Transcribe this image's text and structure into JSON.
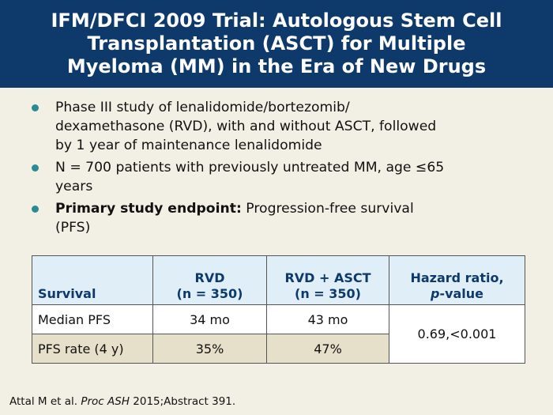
{
  "header": {
    "title_lines": [
      "IFM/DFCI 2009 Trial: Autologous Stem Cell",
      "Transplantation (ASCT) for Multiple",
      "Myeloma (MM) in the Era of New Drugs"
    ]
  },
  "bullets": [
    {
      "lines": [
        "Phase III study of lenalidomide/bortezomib/",
        "dexamethasone (RVD), with and without ASCT, followed",
        "by 1 year of maintenance lenalidomide"
      ]
    },
    {
      "lines": [
        "N = 700 patients with previously untreated MM, age ≤65",
        "years"
      ]
    },
    {
      "bold": "Primary study endpoint:",
      "rest": " Progression-free survival",
      "line2": "(PFS)"
    }
  ],
  "table": {
    "headers": [
      {
        "lines": [
          "Survival"
        ]
      },
      {
        "lines": [
          "RVD",
          "(n = 350)"
        ]
      },
      {
        "lines": [
          "RVD + ASCT",
          "(n = 350)"
        ]
      },
      {
        "line1": "Hazard ratio,",
        "italic": "p",
        "rest": "-value"
      }
    ],
    "rows": [
      {
        "label": "Median PFS",
        "rvd": "34 mo",
        "rvd_asct": "43 mo"
      },
      {
        "label": "PFS rate (4 y)",
        "rvd": "35%",
        "rvd_asct": "47%"
      }
    ],
    "hazard_ratio_value": "0.69,<0.001"
  },
  "footer": {
    "authors": "Attal M et al.",
    "journal": "Proc ASH",
    "rest": " 2015;Abstract 391."
  },
  "colors": {
    "header_bg": "#0d3a6b",
    "page_bg": "#f2f0e4",
    "bullet": "#2a8a96",
    "table_header_bg": "#dfeef7",
    "table_alt_row": "#e6dfc9"
  }
}
